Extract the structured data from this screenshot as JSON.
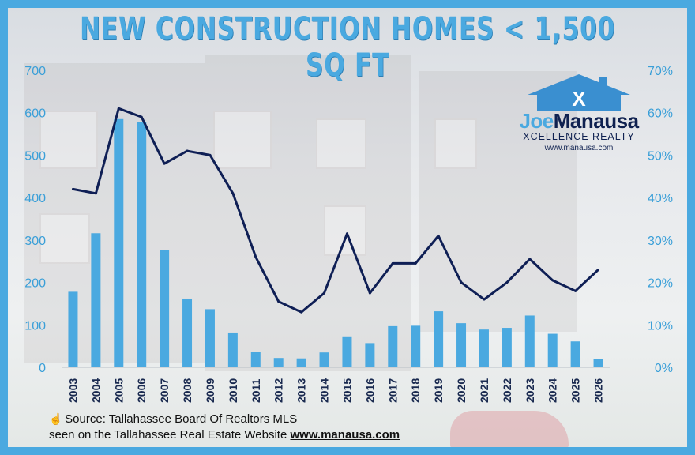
{
  "title": "NEW CONSTRUCTION HOMES < 1,500 SQ FT",
  "logo": {
    "name_first": "Joe",
    "name_last": "Manausa",
    "brand": "XCELLENCE REALTY",
    "site": "www.manausa.com",
    "mark": "X"
  },
  "source": {
    "icon": "pointing-hand-icon",
    "line1": "Source: Tallahassee Board Of Realtors MLS",
    "line2_prefix": "seen on the Tallahassee Real Estate Website ",
    "line2_url": "www.manausa.com"
  },
  "colors": {
    "frame": "#4aa9e0",
    "bar": "#4aa9e0",
    "line": "#0f1f55",
    "title": "#4aa9e0"
  },
  "chart_data": {
    "type": "bar",
    "categories": [
      "2003",
      "2004",
      "2005",
      "2006",
      "2007",
      "2008",
      "2009",
      "2010",
      "2011",
      "2012",
      "2013",
      "2014",
      "2015",
      "2016",
      "2017",
      "2018",
      "2019",
      "2020",
      "2021",
      "2022",
      "2023",
      "2024",
      "2025",
      "2026"
    ],
    "series": [
      {
        "type": "bar",
        "axis": "left",
        "values": [
          178,
          316,
          585,
          578,
          276,
          162,
          137,
          82,
          36,
          22,
          21,
          35,
          73,
          57,
          97,
          98,
          132,
          104,
          89,
          93,
          122,
          79,
          61,
          19
        ]
      },
      {
        "type": "line",
        "axis": "right",
        "values": [
          42,
          41,
          61,
          59,
          48,
          51,
          50,
          41,
          26,
          15.5,
          13,
          17.5,
          31.5,
          17.5,
          24.5,
          24.5,
          31,
          20,
          16,
          20,
          25.5,
          20.5,
          18,
          23
        ]
      }
    ],
    "y_left": {
      "min": 0,
      "max": 700,
      "ticks": [
        "0",
        "100",
        "200",
        "300",
        "400",
        "500",
        "600",
        "700"
      ]
    },
    "y_right": {
      "min": 0,
      "max": 70,
      "ticks": [
        "0%",
        "10%",
        "20%",
        "30%",
        "40%",
        "50%",
        "60%",
        "70%"
      ]
    },
    "xlabel": "",
    "ylabel": "",
    "grid": false,
    "legend": "none"
  }
}
